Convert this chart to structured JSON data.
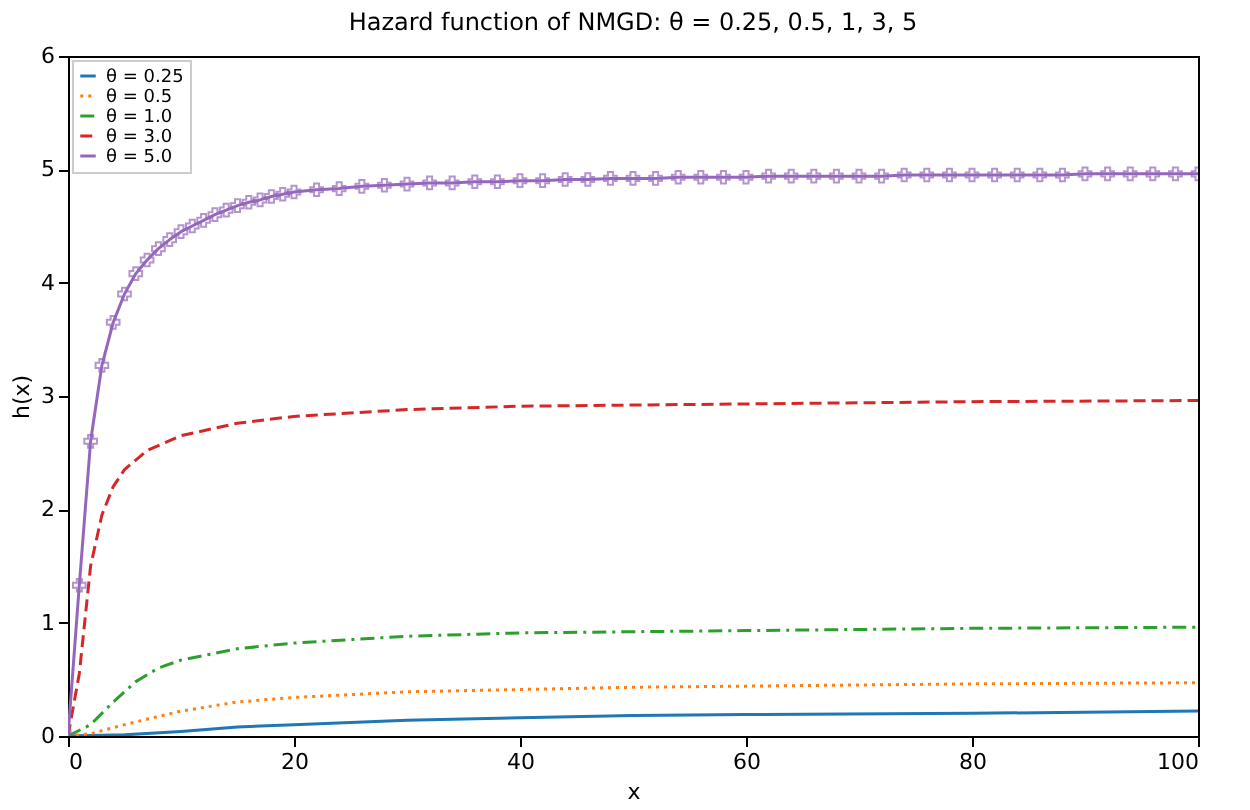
{
  "chart_data": {
    "type": "line",
    "title": "Hazard function of NMGD: θ = 0.25, 0.5, 1, 3, 5",
    "xlabel": "x",
    "ylabel": "h(x)",
    "xlim": [
      0,
      100
    ],
    "xticks": [
      0,
      20,
      40,
      60,
      80,
      100
    ],
    "ylim": [
      0,
      6
    ],
    "yticks": [
      0,
      1,
      2,
      3,
      4,
      5,
      6
    ],
    "grid": false,
    "legend": "top left",
    "series": [
      {
        "name": "θ = 0.25",
        "color": "#1f77b4",
        "line_style": "solid",
        "marker": "none",
        "x": [
          0,
          5,
          10,
          15,
          20,
          30,
          40,
          50,
          60,
          80,
          100
        ],
        "values": [
          0,
          0.01,
          0.04,
          0.08,
          0.1,
          0.14,
          0.16,
          0.18,
          0.19,
          0.2,
          0.22
        ]
      },
      {
        "name": "θ = 0.5",
        "color": "#ff7f0e",
        "line_style": "dotted",
        "marker": "none",
        "x": [
          0,
          2,
          5,
          10,
          15,
          20,
          30,
          40,
          50,
          60,
          80,
          100
        ],
        "values": [
          0,
          0.02,
          0.1,
          0.22,
          0.3,
          0.34,
          0.39,
          0.41,
          0.43,
          0.44,
          0.46,
          0.47
        ]
      },
      {
        "name": "θ = 1.0",
        "color": "#2ca02c",
        "line_style": "dashdot",
        "marker": "none",
        "x": [
          0,
          2,
          4,
          6,
          8,
          10,
          15,
          20,
          30,
          40,
          50,
          60,
          80,
          100
        ],
        "values": [
          0,
          0.1,
          0.3,
          0.48,
          0.6,
          0.67,
          0.77,
          0.82,
          0.88,
          0.91,
          0.92,
          0.93,
          0.95,
          0.96
        ]
      },
      {
        "name": "θ = 3.0",
        "color": "#d62728",
        "line_style": "dashed",
        "marker": "none",
        "x": [
          0,
          1,
          2,
          3,
          4,
          5,
          7,
          10,
          15,
          20,
          30,
          40,
          50,
          60,
          80,
          100
        ],
        "values": [
          0,
          0.55,
          1.5,
          1.95,
          2.2,
          2.35,
          2.52,
          2.65,
          2.76,
          2.82,
          2.88,
          2.91,
          2.92,
          2.93,
          2.95,
          2.96
        ]
      },
      {
        "name": "θ = 5.0",
        "color": "#9467bd",
        "line_style": "solid",
        "marker": "cross",
        "x": [
          0,
          1,
          2,
          3,
          4,
          5,
          6,
          7,
          8,
          9,
          10,
          11,
          12,
          13,
          14,
          15,
          16,
          17,
          18,
          19,
          20,
          22,
          24,
          26,
          28,
          30,
          32,
          34,
          36,
          38,
          40,
          42,
          44,
          46,
          48,
          50,
          52,
          54,
          56,
          58,
          60,
          62,
          64,
          66,
          68,
          70,
          72,
          74,
          76,
          78,
          80,
          82,
          84,
          86,
          88,
          90,
          92,
          94,
          96,
          98,
          100
        ],
        "values": [
          0,
          1.33,
          2.6,
          3.27,
          3.65,
          3.9,
          4.08,
          4.2,
          4.3,
          4.38,
          4.45,
          4.5,
          4.55,
          4.6,
          4.64,
          4.68,
          4.71,
          4.73,
          4.76,
          4.78,
          4.8,
          4.82,
          4.83,
          4.85,
          4.86,
          4.87,
          4.88,
          4.88,
          4.89,
          4.89,
          4.9,
          4.9,
          4.91,
          4.91,
          4.92,
          4.92,
          4.92,
          4.93,
          4.93,
          4.93,
          4.93,
          4.94,
          4.94,
          4.94,
          4.94,
          4.94,
          4.94,
          4.95,
          4.95,
          4.95,
          4.95,
          4.95,
          4.95,
          4.95,
          4.95,
          4.96,
          4.96,
          4.96,
          4.96,
          4.96,
          4.96
        ]
      }
    ]
  }
}
